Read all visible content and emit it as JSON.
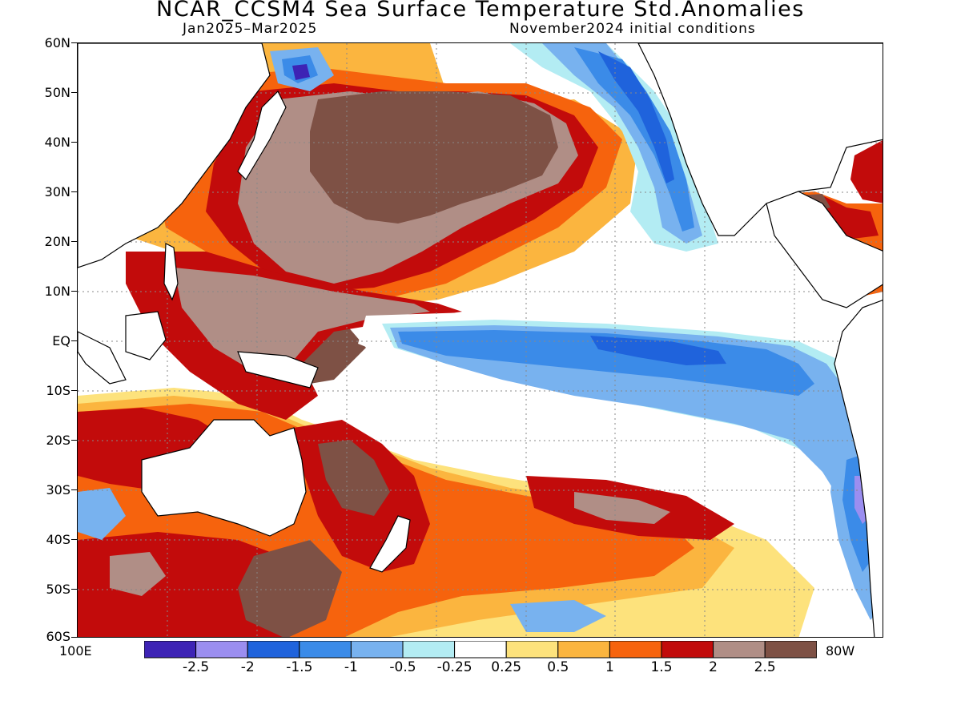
{
  "header": {
    "title": "NCAR_CCSM4 Sea Surface Temperature Std.Anomalies",
    "season": "Jan2025–Mar2025",
    "init": "November2024 initial conditions"
  },
  "axes": {
    "lat_labels": [
      "60N",
      "50N",
      "40N",
      "30N",
      "20N",
      "10N",
      "EQ",
      "10S",
      "20S",
      "30S",
      "40S",
      "50S",
      "60S"
    ],
    "lon_left": "100E",
    "lon_right": "80W"
  },
  "colorbar": {
    "colors": [
      "#3d23b5",
      "#9b8ef0",
      "#1f63dc",
      "#3b8be8",
      "#78b2ef",
      "#b3ecf3",
      "#ffffff",
      "#fde27c",
      "#fbb53f",
      "#f6630d",
      "#c20b0b",
      "#b08e86",
      "#7e5145"
    ],
    "labels": [
      "-2.5",
      "-2",
      "-1.5",
      "-1",
      "-0.5",
      "-0.25",
      "0.25",
      "0.5",
      "1",
      "1.5",
      "2",
      "2.5"
    ]
  },
  "chart_data": {
    "type": "heatmap",
    "variable": "Sea Surface Temperature Std.Anomalies",
    "model": "NCAR_CCSM4",
    "period": "Jan2025–Mar2025",
    "initial_conditions": "November2024",
    "lat_range": [
      "60S",
      "60N"
    ],
    "lon_range": [
      "100E",
      "80W"
    ],
    "levels": [
      -2.5,
      -2,
      -1.5,
      -1,
      -0.5,
      -0.25,
      0.25,
      0.5,
      1,
      1.5,
      2,
      2.5
    ],
    "features": {
      "equatorial_pacific": "negative anomalies -0.5 to -1.5",
      "north_pacific_30N_45N": "positive anomalies above 2.5",
      "western_pacific": "positive anomalies 1.5 to 2.5",
      "south_pacific_30S_40S": "positive anomalies 1 to 2.5",
      "northeast_pacific_coast": "negative anomalies -1 to -2"
    }
  }
}
